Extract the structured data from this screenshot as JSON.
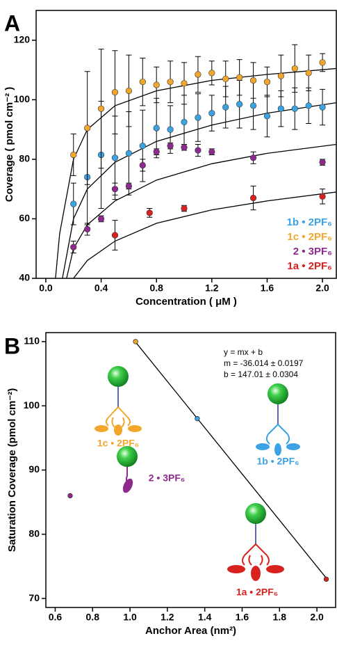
{
  "chart_data": [
    {
      "type": "scatter",
      "panel": "A",
      "x_label": "Concentration ( μM )",
      "y_label": "Coverage ( pmol cm⁻² )",
      "xlim": [
        -0.07,
        2.1
      ],
      "xticks": [
        {
          "value": 0,
          "label": "0.0"
        },
        0.4,
        0.8,
        1.2,
        1.6,
        {
          "value": 2,
          "label": "2.0"
        }
      ],
      "ylim": [
        40,
        130
      ],
      "yticks": [
        40,
        60,
        80,
        100,
        120
      ],
      "series": [
        {
          "name": "1b • 2PF₆",
          "color": "#3ba3e3",
          "x": [
            0.2,
            0.3,
            0.4,
            0.5,
            0.6,
            0.7,
            0.8,
            0.9,
            1.0,
            1.1,
            1.2,
            1.3,
            1.4,
            1.5,
            1.6,
            1.7,
            1.8,
            1.9,
            2.0
          ],
          "values": [
            65,
            74,
            81.5,
            80.5,
            82,
            84.5,
            90.5,
            90,
            92.5,
            94,
            95.5,
            97.5,
            98.5,
            98,
            94.5,
            97,
            97,
            98,
            97.5
          ],
          "errors": [
            7,
            16,
            18,
            14,
            14,
            12,
            10,
            8,
            9,
            8,
            6,
            7,
            8,
            8,
            7,
            6,
            7,
            6,
            6
          ]
        },
        {
          "name": "1c • 2PF₆",
          "color": "#f2a62c",
          "x": [
            0.2,
            0.3,
            0.4,
            0.5,
            0.6,
            0.7,
            0.8,
            0.9,
            1.0,
            1.1,
            1.2,
            1.3,
            1.4,
            1.5,
            1.6,
            1.7,
            1.8,
            1.9,
            2.0
          ],
          "values": [
            81.5,
            90.5,
            97,
            102.5,
            103,
            106,
            105,
            106,
            105.5,
            108.5,
            109,
            107,
            107.5,
            106.5,
            106,
            108,
            110.5,
            109,
            112.5
          ],
          "errors": [
            7,
            19,
            20,
            14,
            12,
            8,
            6,
            7,
            7,
            6,
            4,
            6,
            6,
            6,
            5,
            7,
            8,
            6,
            3
          ]
        },
        {
          "name": "2 • 3PF₆",
          "color": "#8e2a8e",
          "x": [
            0.2,
            0.3,
            0.4,
            0.5,
            0.6,
            0.7,
            0.8,
            0.9,
            1.0,
            1.1,
            1.2,
            1.5,
            2.0
          ],
          "values": [
            50.5,
            56.5,
            60,
            70,
            71,
            78,
            82.5,
            84.5,
            84,
            83,
            82.5,
            80.5,
            79
          ],
          "errors": [
            2,
            2,
            1,
            2,
            1,
            2,
            1,
            1,
            1,
            2,
            1,
            2,
            1
          ]
        },
        {
          "name": "1a • 2PF₆",
          "color": "#d7221f",
          "x": [
            0.5,
            0.75,
            1.0,
            1.5,
            2.0
          ],
          "values": [
            54.5,
            62,
            63.5,
            67,
            67.5
          ],
          "errors": [
            5,
            1.5,
            1,
            4,
            2.5
          ]
        }
      ],
      "fits": [
        {
          "x": [
            0.12,
            0.2,
            0.3,
            0.5,
            0.8,
            1.2,
            1.6,
            2.1
          ],
          "values": [
            40,
            60,
            70,
            79,
            86,
            91.5,
            95.5,
            99
          ]
        },
        {
          "x": [
            0.07,
            0.1,
            0.2,
            0.3,
            0.5,
            0.8,
            1.2,
            1.6,
            2.1
          ],
          "values": [
            40,
            55,
            80,
            90,
            98,
            103,
            106.5,
            108.5,
            110.5
          ]
        },
        {
          "x": [
            0.15,
            0.2,
            0.3,
            0.5,
            0.8,
            1.2,
            1.6,
            2.1
          ],
          "values": [
            40,
            50,
            58,
            66,
            73,
            78.5,
            82,
            85
          ]
        },
        {
          "x": [
            0.2,
            0.3,
            0.5,
            0.8,
            1.2,
            1.6,
            2.1
          ],
          "values": [
            40,
            46,
            52.5,
            58.5,
            63,
            66,
            69
          ]
        }
      ]
    },
    {
      "type": "scatter",
      "panel": "B",
      "x_label": "Anchor Area (nm²)",
      "y_label": "Saturation Coverage (pmol cm⁻²)",
      "xlim": [
        0.55,
        2.1
      ],
      "xticks": [
        0.6,
        0.8,
        {
          "value": 1,
          "label": "1.0"
        },
        1.2,
        1.4,
        1.6,
        1.8,
        {
          "value": 2,
          "label": "2.0"
        }
      ],
      "ylim": [
        68.6,
        111.4
      ],
      "yticks": [
        70,
        80,
        90,
        100,
        110
      ],
      "points": {
        "x": [
          1.03,
          1.36,
          0.68,
          2.05
        ],
        "values": [
          110,
          98,
          86,
          73
        ],
        "colors": [
          "#f2a62c",
          "#3ba3e3",
          "#8e2a8e",
          "#d7221f"
        ]
      },
      "fit_line": {
        "x": [
          1.02,
          2.06
        ],
        "values": [
          110.28,
          72.82
        ]
      },
      "equation": [
        "y  = mx + b",
        "m = -36.014 ± 0.0197",
        "b = 147.01 ± 0.0304"
      ],
      "molecule_labels": [
        "1c • 2PF₆",
        "1b • 2PF₆",
        "2 • 3PF₆",
        "1a • 2PF₆"
      ]
    }
  ]
}
